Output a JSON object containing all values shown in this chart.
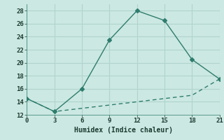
{
  "x": [
    0,
    3,
    6,
    9,
    12,
    15,
    18,
    21
  ],
  "y_upper": [
    14.5,
    12.5,
    16.0,
    23.5,
    28.0,
    26.5,
    20.5,
    17.5
  ],
  "y_lower": [
    14.5,
    12.5,
    13.0,
    13.5,
    14.0,
    14.5,
    15.0,
    17.5
  ],
  "line_color": "#2e7d6e",
  "bg_color": "#cce8e2",
  "grid_color": "#b0d4ce",
  "xlabel": "Humidex (Indice chaleur)",
  "ylim": [
    12,
    29
  ],
  "xlim": [
    0,
    21
  ],
  "yticks": [
    12,
    14,
    16,
    18,
    20,
    22,
    24,
    26,
    28
  ],
  "xticks": [
    0,
    3,
    6,
    9,
    12,
    15,
    18,
    21
  ],
  "markersize": 3,
  "linewidth": 1.0
}
